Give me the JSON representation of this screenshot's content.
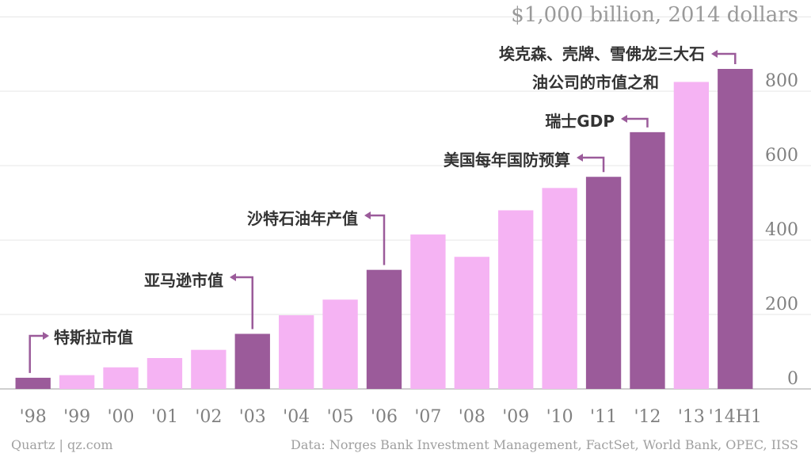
{
  "chart_data": {
    "type": "bar",
    "title": "",
    "unit_label": "$1,000 billion, 2014 dollars",
    "xlabel": "",
    "ylabel": "",
    "categories": [
      "'98",
      "'99",
      "'00",
      "'01",
      "'02",
      "'03",
      "'04",
      "'05",
      "'06",
      "'07",
      "'08",
      "'09",
      "'10",
      "'11",
      "'12",
      "'13",
      "'14H1"
    ],
    "values": [
      30,
      37,
      58,
      83,
      105,
      148,
      198,
      240,
      320,
      415,
      355,
      480,
      540,
      570,
      690,
      825,
      860
    ],
    "highlighted": [
      "'98",
      "'03",
      "'06",
      "'11",
      "'12",
      "'14H1"
    ],
    "ylim": [
      0,
      900
    ],
    "yticks": [
      0,
      200,
      400,
      600,
      800
    ],
    "grid": true,
    "y_axis_side": "right",
    "colors": {
      "highlight": "#9b5b9a",
      "normal": "#f5b3f3",
      "grid": "#e6e6e6",
      "annotation_line": "#9b5b9a"
    },
    "annotations": [
      {
        "category": "'98",
        "lines": [
          "特斯拉市值"
        ]
      },
      {
        "category": "'03",
        "lines": [
          "亚马逊市值"
        ]
      },
      {
        "category": "'06",
        "lines": [
          "沙特石油年产值"
        ]
      },
      {
        "category": "'11",
        "lines": [
          "美国每年国防预算"
        ]
      },
      {
        "category": "'12",
        "lines": [
          "瑞士GDP"
        ]
      },
      {
        "category": "'14H1",
        "lines": [
          "埃克森、壳牌、雪佛龙三大石",
          "油公司的市值之和"
        ]
      }
    ]
  },
  "footer": {
    "source_left": "Quartz | qz.com",
    "source_right": "Data: Norges Bank Investment Management, FactSet, World Bank, OPEC, IISS"
  }
}
